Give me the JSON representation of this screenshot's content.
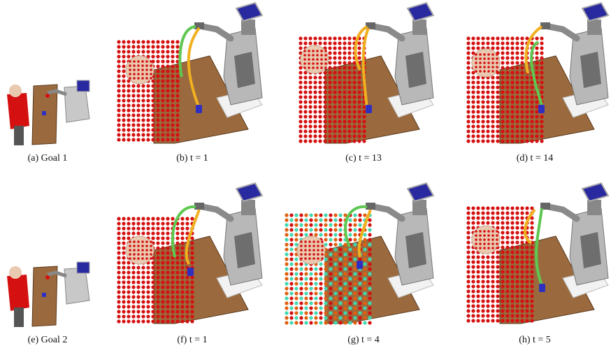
{
  "panels": [
    {
      "caption": "(a) Goal 1"
    },
    {
      "caption": "(b) t = 1"
    },
    {
      "caption": "(c) t = 13"
    },
    {
      "caption": "(d) t = 14"
    },
    {
      "caption": "(e) Goal 2"
    },
    {
      "caption": "(f) t = 1"
    },
    {
      "caption": "(g) t = 4"
    },
    {
      "caption": "(h) t = 5"
    }
  ]
}
